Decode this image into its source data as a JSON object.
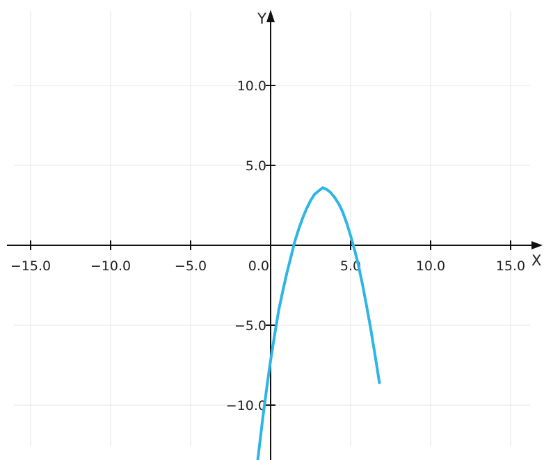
{
  "chart_data": {
    "type": "line",
    "title": "",
    "xlabel": "X",
    "ylabel": "Y",
    "xlim": [
      -16.5,
      16.5
    ],
    "ylim": [
      -13.5,
      14.5
    ],
    "grid": true,
    "x_ticks": [
      {
        "value": -15,
        "label": "−15.0"
      },
      {
        "value": -10,
        "label": "−10.0"
      },
      {
        "value": -5,
        "label": "−5.0"
      },
      {
        "value": 0,
        "label": "0.0"
      },
      {
        "value": 5,
        "label": "5.0"
      },
      {
        "value": 10,
        "label": "10.0"
      },
      {
        "value": 15,
        "label": "15.0"
      }
    ],
    "y_ticks": [
      {
        "value": -10,
        "label": "−10.0"
      },
      {
        "value": -5,
        "label": "−5.0"
      },
      {
        "value": 5,
        "label": "5.0"
      },
      {
        "value": 10,
        "label": "10.0"
      }
    ],
    "series": [
      {
        "color": "#2fb4e6",
        "x": [
          -0.8,
          -0.5,
          -0.2,
          0,
          0.25,
          0.5,
          0.75,
          1,
          1.25,
          1.5,
          1.75,
          2,
          2.25,
          2.5,
          2.75,
          3,
          3.25,
          3.5,
          3.75,
          4,
          4.25,
          4.5,
          4.75,
          5,
          5.25,
          5.5,
          5.75,
          6,
          6.25,
          6.5,
          6.8
        ],
        "y": [
          -13.4,
          -10.9,
          -8.6,
          -7.2,
          -5.6,
          -4.1,
          -2.9,
          -1.8,
          -0.8,
          0.2,
          1.0,
          1.7,
          2.3,
          2.8,
          3.2,
          3.4,
          3.6,
          3.5,
          3.3,
          3.0,
          2.6,
          2.1,
          1.4,
          0.6,
          -0.3,
          -1.3,
          -2.5,
          -3.8,
          -5.2,
          -6.7,
          -8.6
        ]
      }
    ]
  }
}
